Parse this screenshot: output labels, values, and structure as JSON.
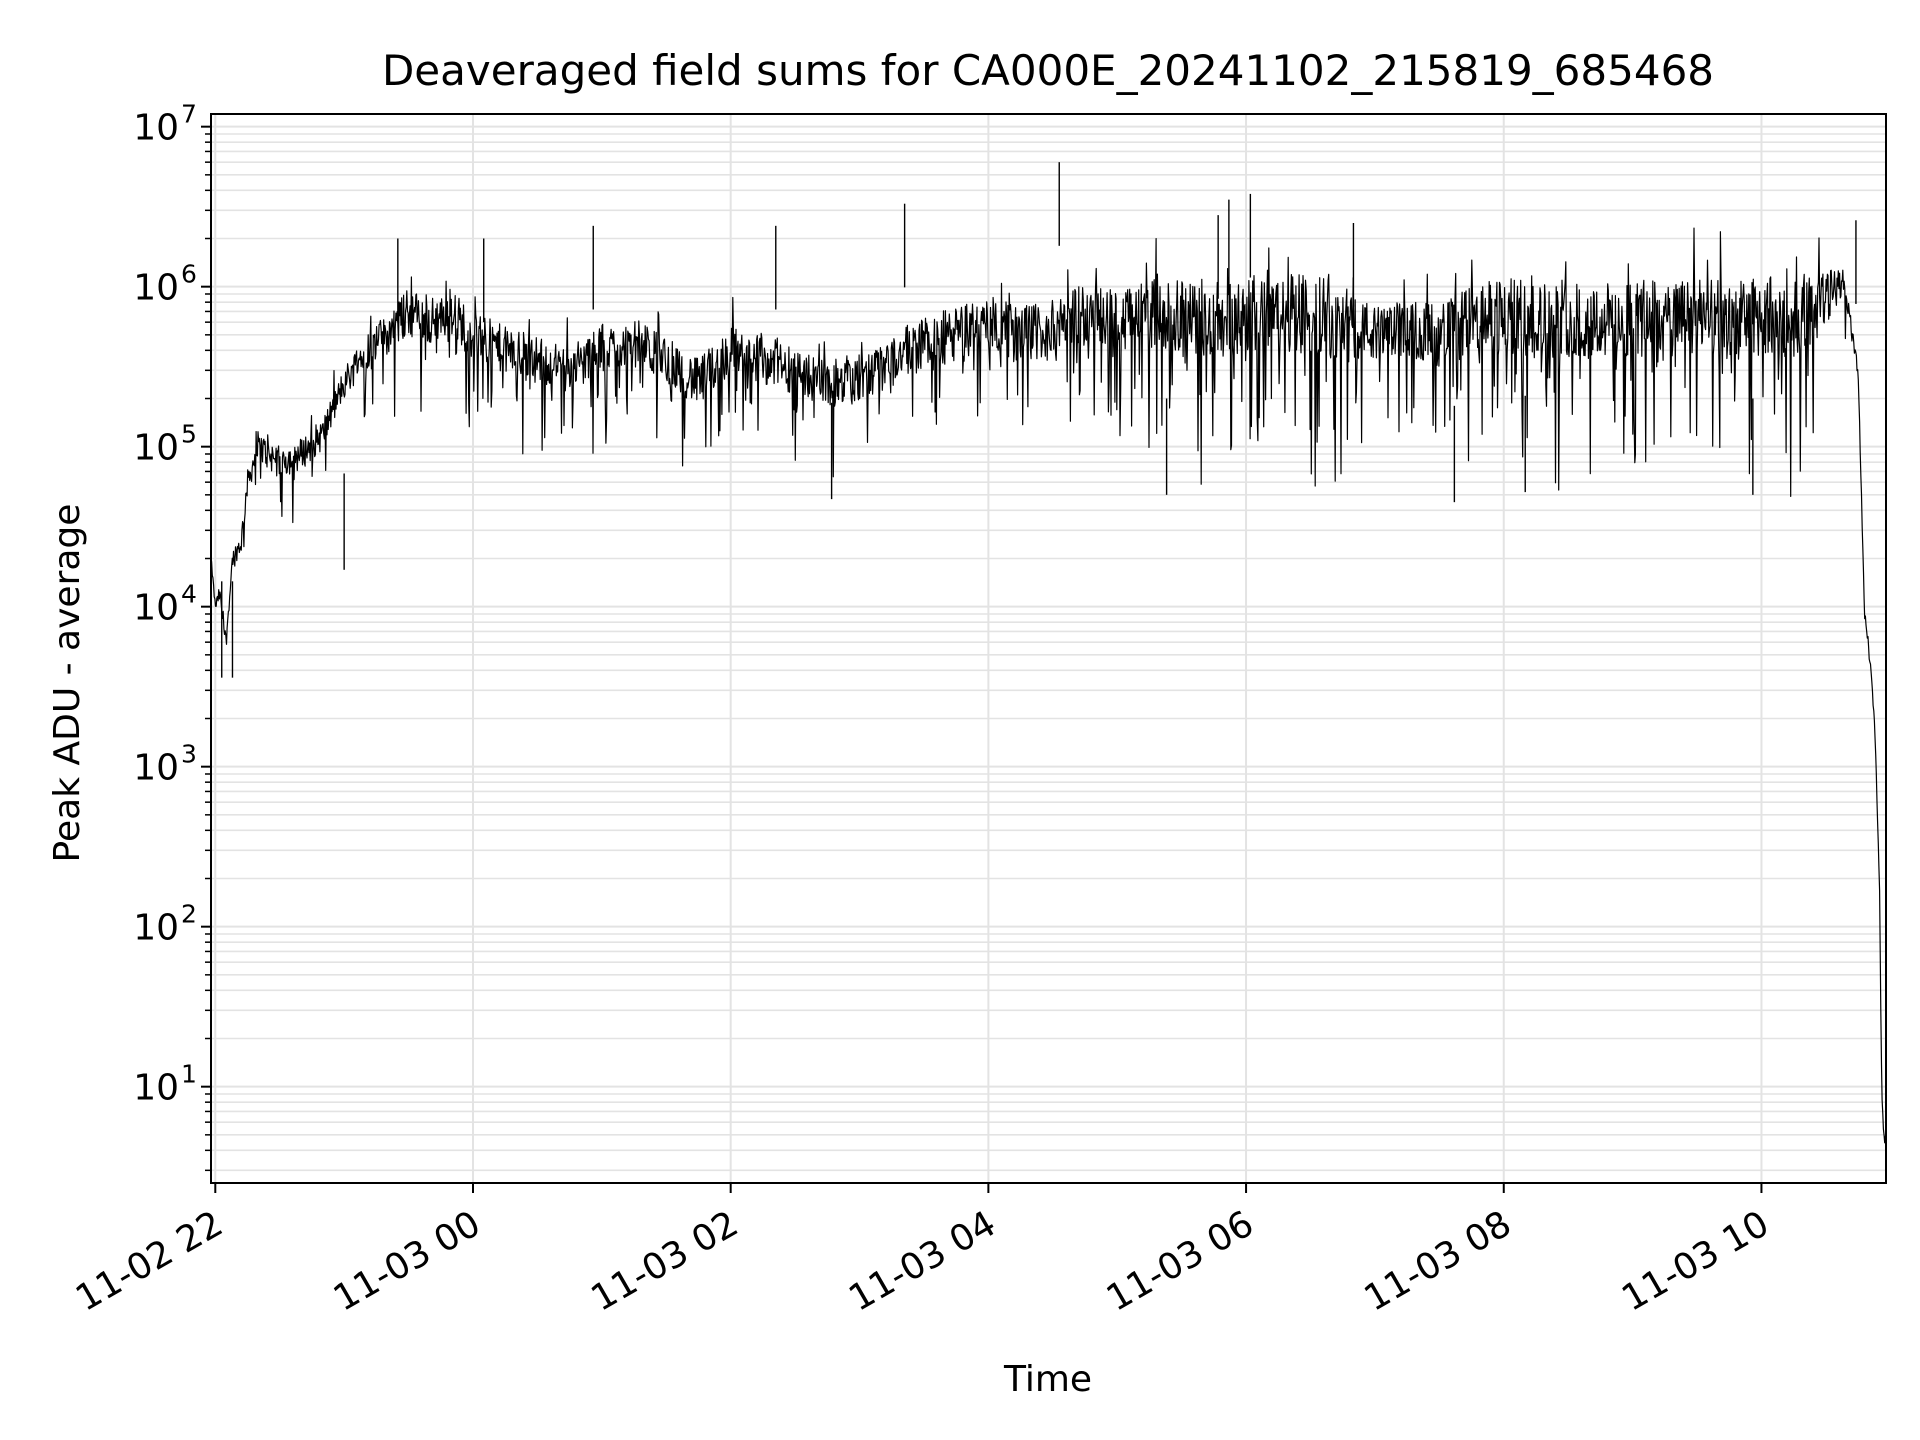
{
  "chart_data": {
    "type": "line",
    "title": "Deaveraged field sums for CA000E_20241102_215819_685468",
    "xlabel": "Time",
    "ylabel": "Peak ADU - average",
    "yscale": "log",
    "ylim": [
      2.5,
      12000000
    ],
    "xlim": [
      "11-02 21:58",
      "11-03 10:58"
    ],
    "grid": true,
    "colors": {
      "line": "#000000",
      "grid": "#e3e3e3",
      "axes": "#000000"
    },
    "x_ticks": [
      {
        "value": "11-02 22:00",
        "label": "11-02 22"
      },
      {
        "value": "11-03 00:00",
        "label": "11-03 00"
      },
      {
        "value": "11-03 02:00",
        "label": "11-03 02"
      },
      {
        "value": "11-03 04:00",
        "label": "11-03 04"
      },
      {
        "value": "11-03 06:00",
        "label": "11-03 06"
      },
      {
        "value": "11-03 08:00",
        "label": "11-03 08"
      },
      {
        "value": "11-03 10:00",
        "label": "11-03 10"
      }
    ],
    "y_ticks": [
      {
        "value": 10,
        "base": "10",
        "exp": "1"
      },
      {
        "value": 100,
        "base": "10",
        "exp": "2"
      },
      {
        "value": 1000,
        "base": "10",
        "exp": "3"
      },
      {
        "value": 10000,
        "base": "10",
        "exp": "4"
      },
      {
        "value": 100000,
        "base": "10",
        "exp": "5"
      },
      {
        "value": 1000000,
        "base": "10",
        "exp": "6"
      },
      {
        "value": 10000000,
        "base": "10",
        "exp": "7"
      }
    ],
    "series": [
      {
        "x": [
          "11-02 21:58",
          "11-02 22:00",
          "11-02 22:02",
          "11-02 22:05",
          "11-02 22:08",
          "11-02 22:12",
          "11-02 22:15",
          "11-02 22:20",
          "11-02 22:30",
          "11-02 22:40",
          "11-02 22:50",
          "11-02 23:00",
          "11-02 23:10",
          "11-02 23:20",
          "11-02 23:30",
          "11-02 23:40",
          "11-02 23:50",
          "11-03 00:00",
          "11-03 00:15",
          "11-03 00:30",
          "11-03 00:45",
          "11-03 01:00",
          "11-03 01:15",
          "11-03 01:30",
          "11-03 01:45",
          "11-03 02:00",
          "11-03 02:15",
          "11-03 02:30",
          "11-03 02:45",
          "11-03 03:00",
          "11-03 03:15",
          "11-03 03:30",
          "11-03 03:45",
          "11-03 04:00",
          "11-03 04:15",
          "11-03 04:30",
          "11-03 04:45",
          "11-03 05:00",
          "11-03 05:15",
          "11-03 05:30",
          "11-03 05:45",
          "11-03 06:00",
          "11-03 06:15",
          "11-03 06:30",
          "11-03 06:45",
          "11-03 07:00",
          "11-03 07:15",
          "11-03 07:30",
          "11-03 07:45",
          "11-03 08:00",
          "11-03 08:15",
          "11-03 08:30",
          "11-03 08:45",
          "11-03 09:00",
          "11-03 09:15",
          "11-03 09:30",
          "11-03 09:45",
          "11-03 10:00",
          "11-03 10:15",
          "11-03 10:25",
          "11-03 10:38",
          "11-03 10:45",
          "11-03 10:48",
          "11-03 10:51",
          "11-03 10:53",
          "11-03 10:55",
          "11-03 10:56",
          "11-03 10:57",
          "11-03 10:58"
        ],
        "y": [
          20000,
          10000,
          12000,
          6000,
          20000,
          25000,
          60000,
          100000,
          80000,
          90000,
          120000,
          250000,
          400000,
          500000,
          700000,
          600000,
          700000,
          500000,
          400000,
          350000,
          300000,
          400000,
          450000,
          350000,
          250000,
          400000,
          350000,
          300000,
          250000,
          250000,
          350000,
          450000,
          500000,
          600000,
          500000,
          550000,
          700000,
          600000,
          700000,
          650000,
          600000,
          700000,
          650000,
          700000,
          600000,
          500000,
          550000,
          500000,
          600000,
          650000,
          600000,
          650000,
          600000,
          650000,
          600000,
          650000,
          600000,
          650000,
          650000,
          700000,
          1100000,
          300000,
          9000,
          4000,
          1500,
          160,
          10,
          5,
          5
        ],
        "spread": [
          1,
          1,
          2,
          2,
          2,
          3,
          3,
          4,
          4,
          4,
          4,
          4,
          5,
          5,
          6,
          6,
          6,
          6,
          6,
          6,
          6,
          6,
          6,
          6,
          6,
          6,
          6,
          6,
          6,
          6,
          6,
          7,
          7,
          7,
          7,
          7,
          7,
          8,
          9,
          9,
          10,
          10,
          10,
          10,
          10,
          7,
          7,
          8,
          9,
          10,
          10,
          10,
          10,
          10,
          10,
          10,
          10,
          10,
          10,
          10,
          3,
          2,
          1,
          1,
          1,
          1,
          1,
          1,
          1
        ],
        "peaks": [
          {
            "x": "11-03 04:33",
            "y": 6000000
          },
          {
            "x": "11-03 03:21",
            "y": 3300000
          },
          {
            "x": "11-03 06:02",
            "y": 3800000
          },
          {
            "x": "11-03 05:47",
            "y": 2800000
          },
          {
            "x": "11-03 05:52",
            "y": 3500000
          },
          {
            "x": "11-03 00:56",
            "y": 2400000
          },
          {
            "x": "11-03 02:21",
            "y": 2400000
          },
          {
            "x": "11-03 06:50",
            "y": 2500000
          },
          {
            "x": "11-03 10:44",
            "y": 2600000
          },
          {
            "x": "11-02 23:25",
            "y": 2000000
          },
          {
            "x": "11-03 00:05",
            "y": 2000000
          }
        ],
        "dips": [
          {
            "x": "11-02 22:03",
            "y": 3600
          },
          {
            "x": "11-02 22:08",
            "y": 3600
          },
          {
            "x": "11-02 23:00",
            "y": 17000
          },
          {
            "x": "11-03 02:47",
            "y": 47000
          },
          {
            "x": "11-03 05:23",
            "y": 50000
          },
          {
            "x": "11-03 07:37",
            "y": 45000
          },
          {
            "x": "11-03 08:10",
            "y": 52000
          },
          {
            "x": "11-03 09:56",
            "y": 50000
          }
        ]
      }
    ]
  }
}
